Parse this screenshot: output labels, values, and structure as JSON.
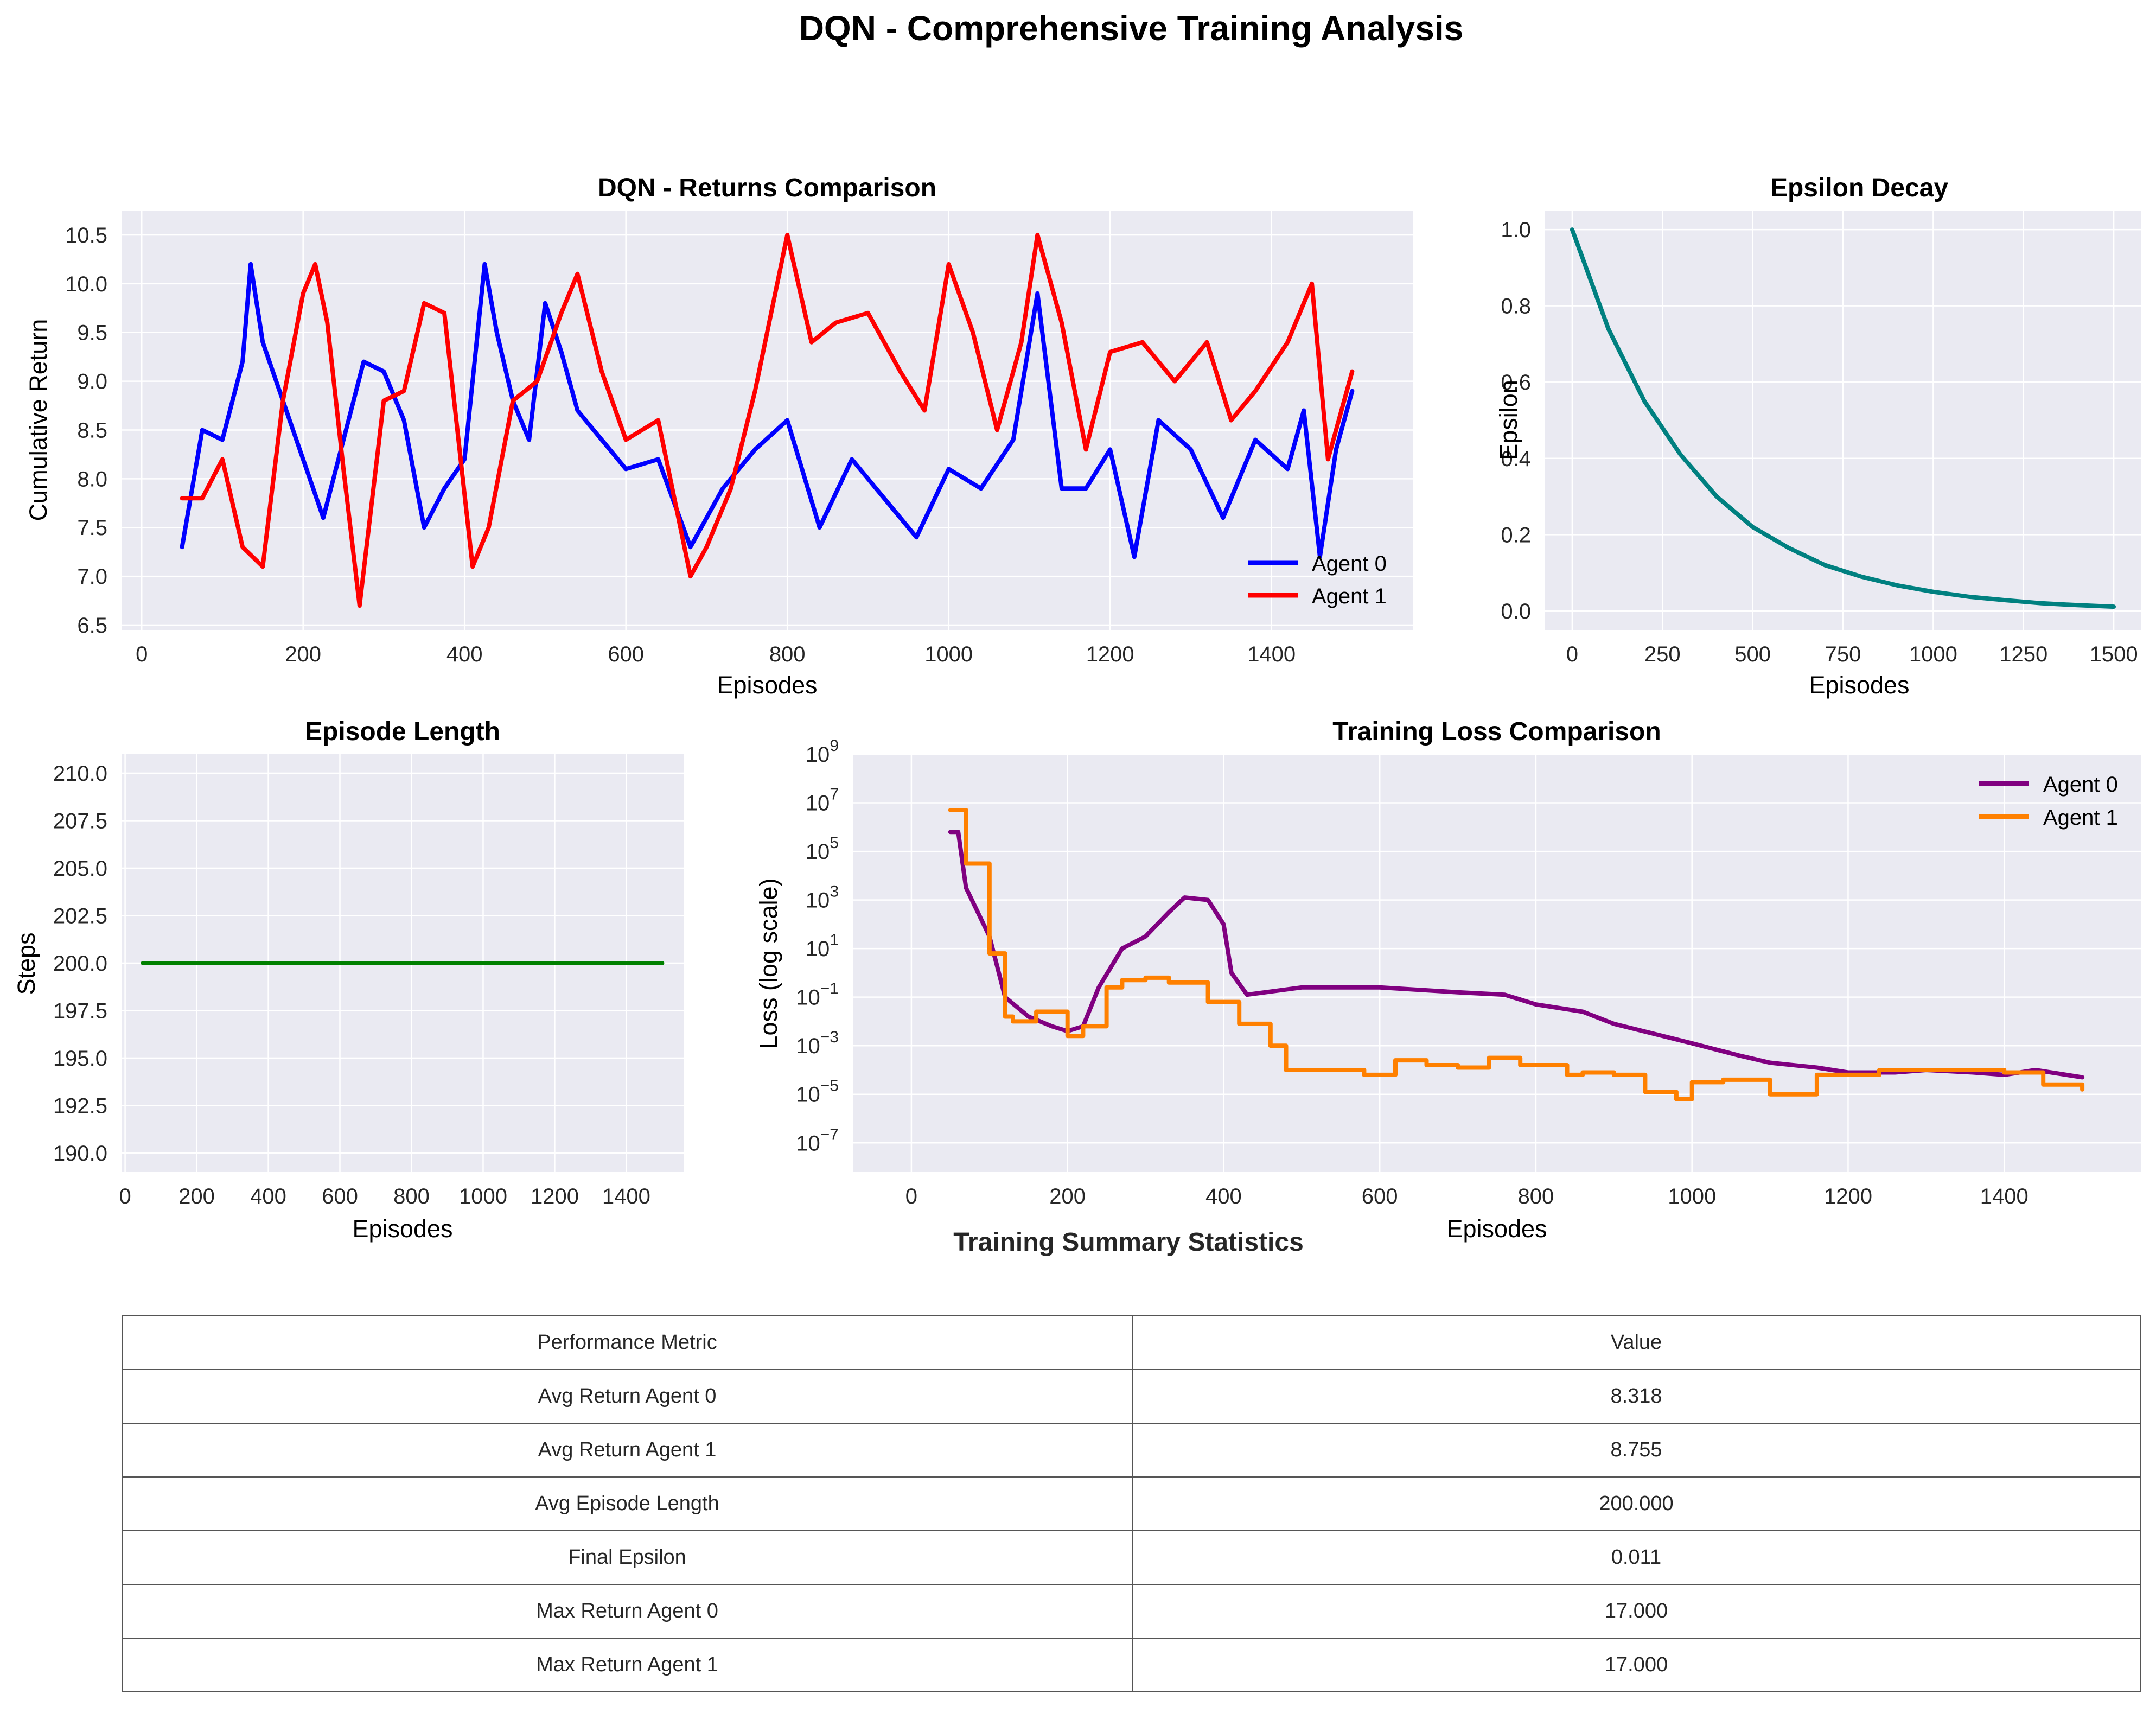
{
  "suptitle": "DQN - Comprehensive Training Analysis",
  "colors": {
    "axes_bg": "#eaeaf2",
    "grid": "#ffffff",
    "agent0_returns": "#0000ff",
    "agent1_returns": "#ff0000",
    "epsilon": "#008080",
    "episode_length": "#008000",
    "agent0_loss": "#800080",
    "agent1_loss": "#ff8000"
  },
  "chart_data": [
    {
      "id": "returns",
      "type": "line",
      "title": "DQN - Returns Comparison",
      "xlabel": "Episodes",
      "ylabel": "Cumulative Return",
      "xlim": [
        -25,
        1575
      ],
      "ylim": [
        6.45,
        10.75
      ],
      "xticks": [
        0,
        200,
        400,
        600,
        800,
        1000,
        1200,
        1400
      ],
      "yticks": [
        6.5,
        7.0,
        7.5,
        8.0,
        8.5,
        9.0,
        9.5,
        10.0,
        10.5
      ],
      "legend_position": "lower-right",
      "series": [
        {
          "name": "Agent 0",
          "x": [
            50,
            75,
            100,
            125,
            135,
            150,
            175,
            200,
            225,
            250,
            275,
            300,
            325,
            350,
            375,
            400,
            425,
            440,
            460,
            480,
            500,
            520,
            540,
            560,
            600,
            640,
            680,
            720,
            760,
            800,
            840,
            880,
            920,
            960,
            1000,
            1040,
            1080,
            1110,
            1140,
            1170,
            1200,
            1230,
            1260,
            1300,
            1340,
            1380,
            1420,
            1440,
            1460,
            1480,
            1500
          ],
          "values": [
            7.3,
            8.5,
            8.4,
            9.2,
            10.2,
            9.4,
            8.8,
            8.2,
            7.6,
            8.4,
            9.2,
            9.1,
            8.6,
            7.5,
            7.9,
            8.2,
            10.2,
            9.5,
            8.8,
            8.4,
            9.8,
            9.3,
            8.7,
            8.5,
            8.1,
            8.2,
            7.3,
            7.9,
            8.3,
            8.6,
            7.5,
            8.2,
            7.8,
            7.4,
            8.1,
            7.9,
            8.4,
            9.9,
            7.9,
            7.9,
            8.3,
            7.2,
            8.6,
            8.3,
            7.6,
            8.4,
            8.1,
            8.7,
            7.2,
            8.3,
            8.9
          ]
        },
        {
          "name": "Agent 1",
          "x": [
            50,
            75,
            100,
            125,
            150,
            175,
            200,
            215,
            230,
            250,
            270,
            300,
            325,
            350,
            375,
            410,
            430,
            460,
            490,
            520,
            540,
            570,
            600,
            640,
            680,
            700,
            730,
            760,
            800,
            830,
            860,
            900,
            940,
            970,
            1000,
            1030,
            1060,
            1090,
            1110,
            1140,
            1170,
            1200,
            1240,
            1280,
            1320,
            1350,
            1380,
            1420,
            1450,
            1470,
            1500
          ],
          "values": [
            7.8,
            7.8,
            8.2,
            7.3,
            7.1,
            8.8,
            9.9,
            10.2,
            9.6,
            8.1,
            6.7,
            8.8,
            8.9,
            9.8,
            9.7,
            7.1,
            7.5,
            8.8,
            9.0,
            9.7,
            10.1,
            9.1,
            8.4,
            8.6,
            7.0,
            7.3,
            7.9,
            8.9,
            10.5,
            9.4,
            9.6,
            9.7,
            9.1,
            8.7,
            10.2,
            9.5,
            8.5,
            9.4,
            10.5,
            9.6,
            8.3,
            9.3,
            9.4,
            9.0,
            9.4,
            8.6,
            8.9,
            9.4,
            10.0,
            8.2,
            9.1
          ]
        }
      ]
    },
    {
      "id": "epsilon",
      "type": "line",
      "title": "Epsilon Decay",
      "xlabel": "Episodes",
      "ylabel": "Epsilon",
      "xlim": [
        -75,
        1575
      ],
      "ylim": [
        -0.05,
        1.05
      ],
      "xticks": [
        0,
        250,
        500,
        750,
        1000,
        1250,
        1500
      ],
      "yticks": [
        0.0,
        0.2,
        0.4,
        0.6,
        0.8,
        1.0
      ],
      "series": [
        {
          "name": "Epsilon",
          "x": [
            0,
            100,
            200,
            300,
            400,
            500,
            600,
            700,
            800,
            900,
            1000,
            1100,
            1200,
            1300,
            1400,
            1500
          ],
          "values": [
            1.0,
            0.74,
            0.55,
            0.41,
            0.3,
            0.22,
            0.165,
            0.12,
            0.09,
            0.067,
            0.05,
            0.037,
            0.028,
            0.02,
            0.015,
            0.011
          ]
        }
      ]
    },
    {
      "id": "episode_length",
      "type": "line",
      "title": "Episode Length",
      "xlabel": "Episodes",
      "ylabel": "Steps",
      "xlim": [
        -10,
        1560
      ],
      "ylim": [
        189,
        211
      ],
      "xticks": [
        0,
        200,
        400,
        600,
        800,
        1000,
        1200,
        1400
      ],
      "yticks": [
        190.0,
        192.5,
        195.0,
        197.5,
        200.0,
        202.5,
        205.0,
        207.5,
        210.0
      ],
      "series": [
        {
          "name": "Steps",
          "x": [
            50,
            1500
          ],
          "values": [
            200,
            200
          ]
        }
      ]
    },
    {
      "id": "loss",
      "type": "line",
      "title": "Training Loss Comparison",
      "xlabel": "Episodes",
      "ylabel": "Loss (log scale)",
      "yscale": "log",
      "xlim": [
        -75,
        1575
      ],
      "ylim_log10": [
        -8.2,
        9
      ],
      "xticks": [
        0,
        200,
        400,
        600,
        800,
        1000,
        1200,
        1400
      ],
      "ytick_exponents": [
        -7,
        -5,
        -3,
        -1,
        1,
        3,
        5,
        7,
        9
      ],
      "ytick_base": "10",
      "legend_position": "upper-right",
      "series": [
        {
          "name": "Agent 0",
          "x": [
            50,
            60,
            70,
            100,
            120,
            150,
            180,
            200,
            220,
            240,
            270,
            300,
            330,
            350,
            380,
            400,
            410,
            430,
            500,
            600,
            700,
            760,
            800,
            860,
            900,
            1000,
            1060,
            1100,
            1160,
            1200,
            1260,
            1300,
            1360,
            1400,
            1440,
            1500
          ],
          "log10_values": [
            5.8,
            5.8,
            3.5,
            1.5,
            -1.0,
            -1.8,
            -2.2,
            -2.4,
            -2.2,
            -0.6,
            1.0,
            1.5,
            2.5,
            3.1,
            3.0,
            2.0,
            0.0,
            -0.9,
            -0.6,
            -0.6,
            -0.8,
            -0.9,
            -1.3,
            -1.6,
            -2.1,
            -2.9,
            -3.4,
            -3.7,
            -3.9,
            -4.1,
            -4.1,
            -4.0,
            -4.1,
            -4.2,
            -4.0,
            -4.3
          ]
        },
        {
          "name": "Agent 1",
          "x": [
            50,
            60,
            70,
            100,
            120,
            130,
            160,
            200,
            220,
            250,
            270,
            300,
            330,
            380,
            420,
            460,
            480,
            540,
            580,
            620,
            660,
            700,
            740,
            780,
            840,
            860,
            900,
            940,
            980,
            1000,
            1040,
            1100,
            1160,
            1200,
            1240,
            1300,
            1340,
            1400,
            1450,
            1500
          ],
          "log10_values": [
            6.7,
            6.7,
            4.5,
            0.8,
            -1.8,
            -2.0,
            -1.6,
            -2.6,
            -2.2,
            -0.6,
            -0.3,
            -0.2,
            -0.4,
            -1.2,
            -2.1,
            -3.0,
            -4.0,
            -4.0,
            -4.2,
            -3.6,
            -3.8,
            -3.9,
            -3.5,
            -3.8,
            -4.2,
            -4.1,
            -4.2,
            -4.9,
            -5.2,
            -4.5,
            -4.4,
            -5.0,
            -4.2,
            -4.2,
            -4.0,
            -4.0,
            -4.0,
            -4.1,
            -4.6,
            -4.8
          ]
        }
      ]
    }
  ],
  "stats": {
    "title": "Training Summary Statistics",
    "header": [
      "Performance Metric",
      "Value"
    ],
    "rows": [
      [
        "Avg Return Agent 0",
        "8.318"
      ],
      [
        "Avg Return Agent 1",
        "8.755"
      ],
      [
        "Avg Episode Length",
        "200.000"
      ],
      [
        "Final Epsilon",
        "0.011"
      ],
      [
        "Max Return Agent 0",
        "17.000"
      ],
      [
        "Max Return Agent 1",
        "17.000"
      ]
    ]
  }
}
